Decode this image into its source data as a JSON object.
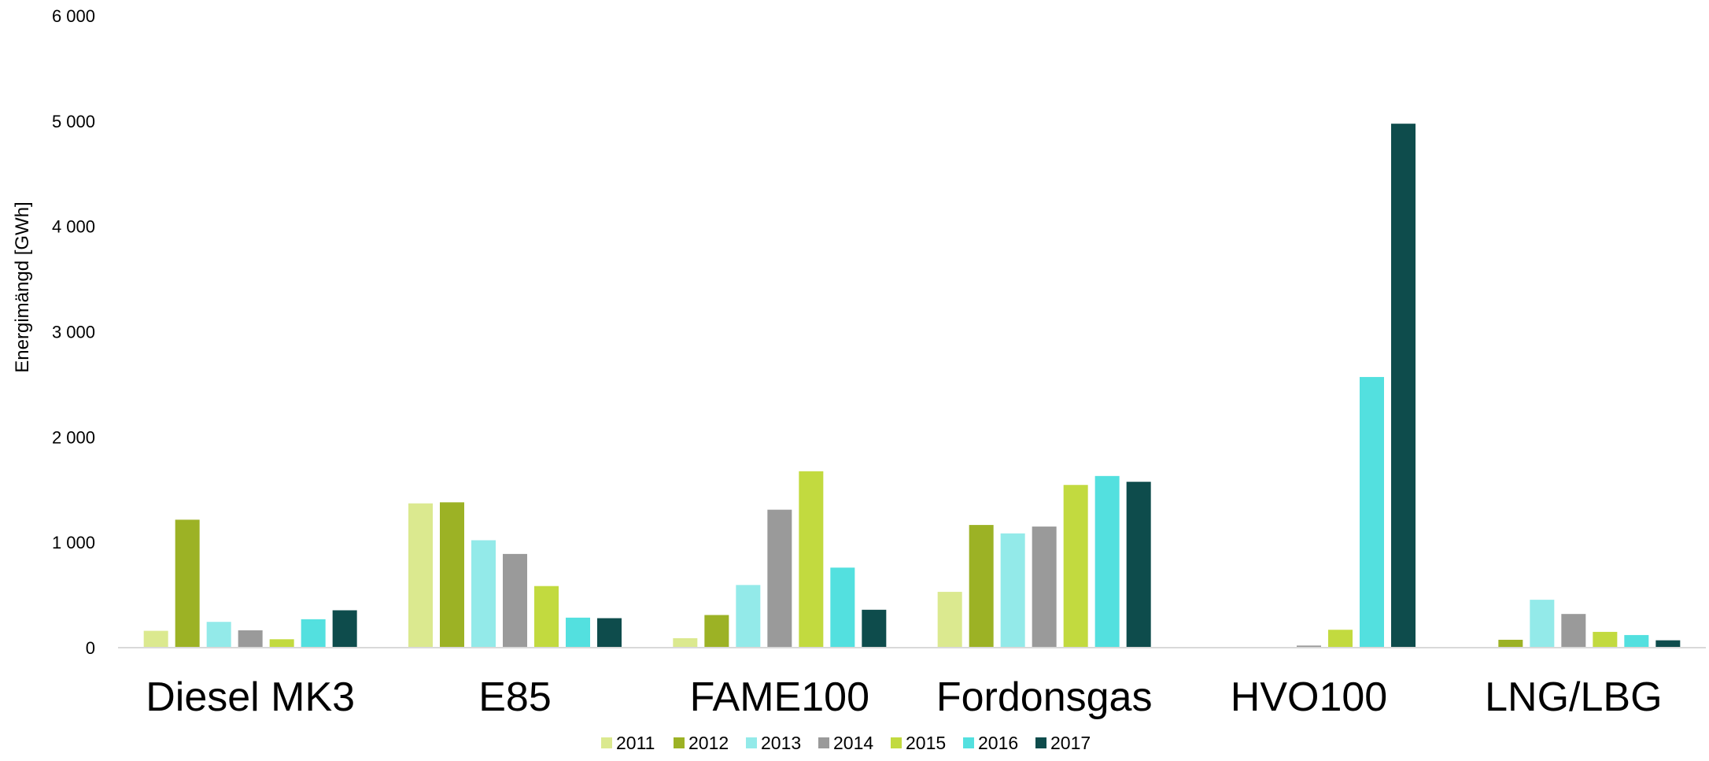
{
  "chart_data": {
    "type": "bar",
    "title": "",
    "xlabel": "",
    "ylabel": "Energimängd [GWh]",
    "ylim": [
      0,
      6000
    ],
    "yticks": [
      0,
      1000,
      2000,
      3000,
      4000,
      5000,
      6000
    ],
    "ytick_labels": [
      "0",
      "1 000",
      "2 000",
      "3 000",
      "4 000",
      "5 000",
      "6 000"
    ],
    "grid": false,
    "legend_position": "bottom",
    "categories": [
      "Diesel MK3",
      "E85",
      "FAME100",
      "Fordonsgas",
      "HVO100",
      "LNG/LBG"
    ],
    "series": [
      {
        "name": "2011",
        "color": "#dbe98f",
        "values": [
          160,
          1370,
          90,
          530,
          0,
          0
        ]
      },
      {
        "name": "2012",
        "color": "#9cb225",
        "values": [
          1215,
          1380,
          310,
          1165,
          0,
          75
        ]
      },
      {
        "name": "2013",
        "color": "#93eae9",
        "values": [
          245,
          1020,
          595,
          1085,
          0,
          455
        ]
      },
      {
        "name": "2014",
        "color": "#9a9a9a",
        "values": [
          165,
          890,
          1310,
          1150,
          20,
          320
        ]
      },
      {
        "name": "2015",
        "color": "#c2da3f",
        "values": [
          80,
          585,
          1675,
          1545,
          170,
          150
        ]
      },
      {
        "name": "2016",
        "color": "#53e0df",
        "values": [
          270,
          285,
          760,
          1630,
          2570,
          120
        ]
      },
      {
        "name": "2017",
        "color": "#0e4c4c",
        "values": [
          355,
          280,
          360,
          1575,
          4975,
          70
        ]
      }
    ]
  }
}
